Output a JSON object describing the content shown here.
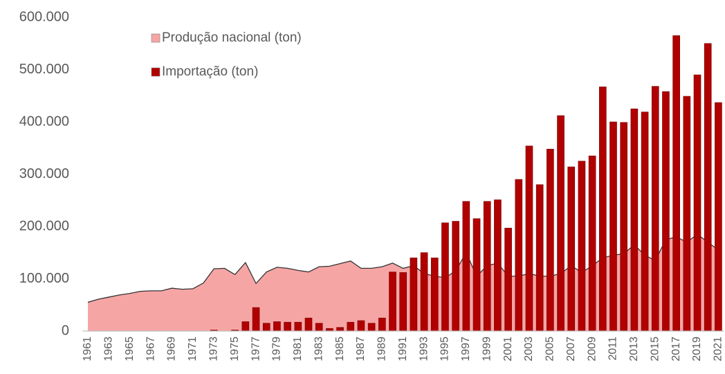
{
  "chart_data": {
    "type": "bar",
    "categories": [
      "1961",
      null,
      "1963",
      null,
      "1965",
      null,
      "1967",
      null,
      "1969",
      null,
      "1971",
      null,
      "1973",
      null,
      "1975",
      null,
      "1977",
      null,
      "1979",
      null,
      "1981",
      null,
      "1983",
      null,
      "1985",
      null,
      "1987",
      null,
      "1989",
      null,
      "1991",
      null,
      "1993",
      null,
      "1995",
      null,
      "1997",
      null,
      "1999",
      null,
      "2001",
      null,
      "2003",
      null,
      "2005",
      null,
      "2007",
      null,
      "2009",
      null,
      "2011",
      null,
      "2013",
      null,
      "2015",
      null,
      "2017",
      null,
      "2019",
      null,
      "2021"
    ],
    "series": [
      {
        "name": "Produção nacional (ton)",
        "type": "area",
        "color": "#f6a5a5",
        "values": [
          55000,
          61000,
          65000,
          69000,
          72000,
          76000,
          77000,
          77000,
          82000,
          80000,
          81000,
          92000,
          119000,
          120000,
          108000,
          131000,
          91000,
          113000,
          122000,
          120000,
          116000,
          113000,
          123000,
          124000,
          129000,
          134000,
          120000,
          120000,
          123000,
          130000,
          120000,
          125000,
          110000,
          105000,
          102000,
          115000,
          150000,
          105000,
          125000,
          130000,
          105000,
          105000,
          110000,
          105000,
          105000,
          110000,
          125000,
          112000,
          125000,
          140000,
          145000,
          148000,
          165000,
          145000,
          135000,
          175000,
          180000,
          170000,
          185000,
          170000,
          155000
        ]
      },
      {
        "name": "Importação (ton)",
        "type": "bar",
        "color": "#b00000",
        "values": [
          0,
          0,
          0,
          0,
          0,
          0,
          0,
          0,
          0,
          0,
          0,
          0,
          2000,
          0,
          2000,
          18000,
          45000,
          15000,
          18000,
          17000,
          17000,
          25000,
          15000,
          5000,
          7000,
          17000,
          20000,
          15000,
          25000,
          113000,
          112000,
          140000,
          150000,
          140000,
          207000,
          210000,
          248000,
          215000,
          248000,
          251000,
          197000,
          290000,
          354000,
          280000,
          348000,
          412000,
          314000,
          325000,
          335000,
          467000,
          400000,
          399000,
          425000,
          419000,
          468000,
          458000,
          565000,
          449000,
          490000,
          550000,
          437000
        ]
      }
    ],
    "ylim": [
      0,
      600000
    ],
    "yticks": [
      0,
      {
        "value": 100000,
        "label": "100.000"
      },
      {
        "value": 200000,
        "label": "200.000"
      },
      {
        "value": 300000,
        "label": "300.000"
      },
      {
        "value": 400000,
        "label": "400.000"
      },
      {
        "value": 500000,
        "label": "500.000"
      },
      {
        "value": 600000,
        "label": "600.000"
      }
    ],
    "grid": false
  }
}
